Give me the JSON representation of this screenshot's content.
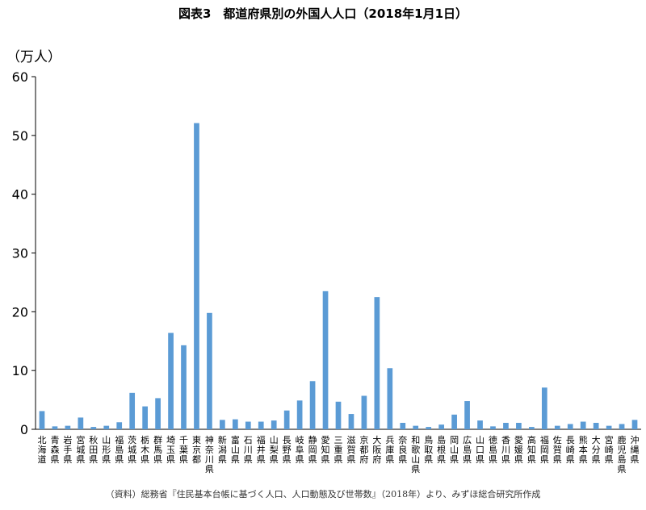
{
  "chart_data": {
    "type": "bar",
    "title": "図表3　都道府県別の外国人人口（2018年1月1日）",
    "ylabel": "（万人）",
    "ylim": [
      0,
      60
    ],
    "yticks": [
      0,
      10,
      20,
      30,
      40,
      50,
      60
    ],
    "grid": false,
    "categories": [
      "北海道",
      "青森県",
      "岩手県",
      "宮城県",
      "秋田県",
      "山形県",
      "福島県",
      "茨城県",
      "栃木県",
      "群馬県",
      "埼玉県",
      "千葉県",
      "東京都",
      "神奈川県",
      "新潟県",
      "富山県",
      "石川県",
      "福井県",
      "山梨県",
      "長野県",
      "岐阜県",
      "静岡県",
      "愛知県",
      "三重県",
      "滋賀県",
      "京都府",
      "大阪府",
      "兵庫県",
      "奈良県",
      "和歌山県",
      "鳥取県",
      "島根県",
      "岡山県",
      "広島県",
      "山口県",
      "徳島県",
      "香川県",
      "愛媛県",
      "高知県",
      "福岡県",
      "佐賀県",
      "長崎県",
      "熊本県",
      "大分県",
      "宮崎県",
      "鹿児島県",
      "沖縄県"
    ],
    "values": [
      3.1,
      0.5,
      0.6,
      2.0,
      0.4,
      0.6,
      1.2,
      6.2,
      3.9,
      5.3,
      16.4,
      14.3,
      52.1,
      19.8,
      1.6,
      1.7,
      1.3,
      1.3,
      1.5,
      3.2,
      4.9,
      8.2,
      23.5,
      4.7,
      2.6,
      5.7,
      22.5,
      10.4,
      1.1,
      0.6,
      0.4,
      0.8,
      2.5,
      4.8,
      1.5,
      0.5,
      1.1,
      1.1,
      0.4,
      7.1,
      0.6,
      0.9,
      1.3,
      1.1,
      0.6,
      0.9,
      1.6
    ],
    "bar_color": "#5b9bd5"
  },
  "source": "（資料）総務省『住民基本台帳に基づく人口、人口動態及び世帯数』（2018年）より、みずほ総合研究所作成"
}
